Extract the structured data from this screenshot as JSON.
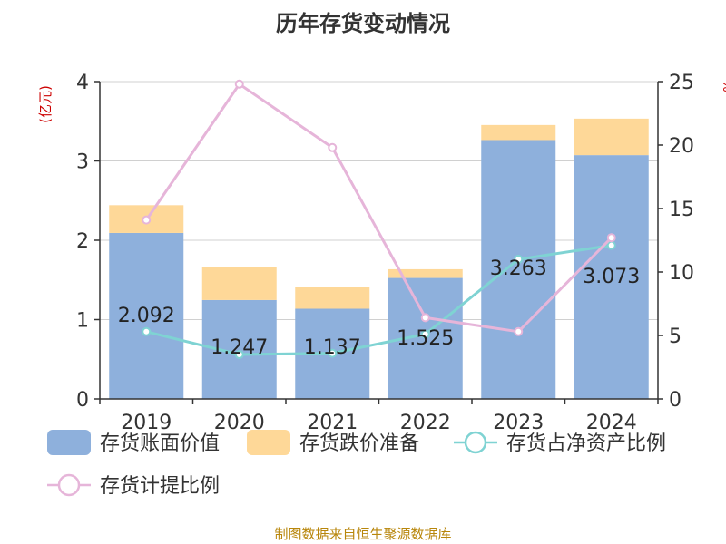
{
  "page": {
    "title": "历年存货变动情况",
    "footer": "制图数据来自恒生聚源数据库"
  },
  "chart_data": {
    "type": "bar",
    "title": "历年存货变动情况",
    "categories": [
      "2019",
      "2020",
      "2021",
      "2022",
      "2023",
      "2024"
    ],
    "y_left": {
      "label": "(亿元)",
      "range": [
        0,
        4
      ],
      "ticks": [
        "0",
        "1",
        "2",
        "3",
        "4"
      ]
    },
    "y_right": {
      "label": "%",
      "range": [
        0,
        25
      ],
      "ticks": [
        "0",
        "5",
        "10",
        "15",
        "20",
        "25"
      ]
    },
    "series": [
      {
        "name": "存货账面价值",
        "kind": "bar",
        "axis": "left",
        "color": "#8eb0dc",
        "values": [
          2.092,
          1.247,
          1.137,
          1.525,
          3.263,
          3.073
        ],
        "labels": [
          "2.092",
          "1.247",
          "1.137",
          "1.525",
          "3.263",
          "3.073"
        ]
      },
      {
        "name": "存货跌价准备",
        "kind": "bar-stacked",
        "axis": "left",
        "color": "#fed898",
        "values": [
          0.35,
          0.42,
          0.28,
          0.11,
          0.19,
          0.46
        ]
      },
      {
        "name": "存货占净资产比例",
        "kind": "line",
        "axis": "right",
        "color": "#7fd3d3",
        "values": [
          5.3,
          3.5,
          3.6,
          5.1,
          11.0,
          12.1
        ]
      },
      {
        "name": "存货计提比例",
        "kind": "line",
        "axis": "right",
        "color": "#e6b5d9",
        "values": [
          14.1,
          24.8,
          19.8,
          6.4,
          5.3,
          12.7
        ]
      }
    ],
    "grid": true,
    "legend_position": "bottom"
  }
}
